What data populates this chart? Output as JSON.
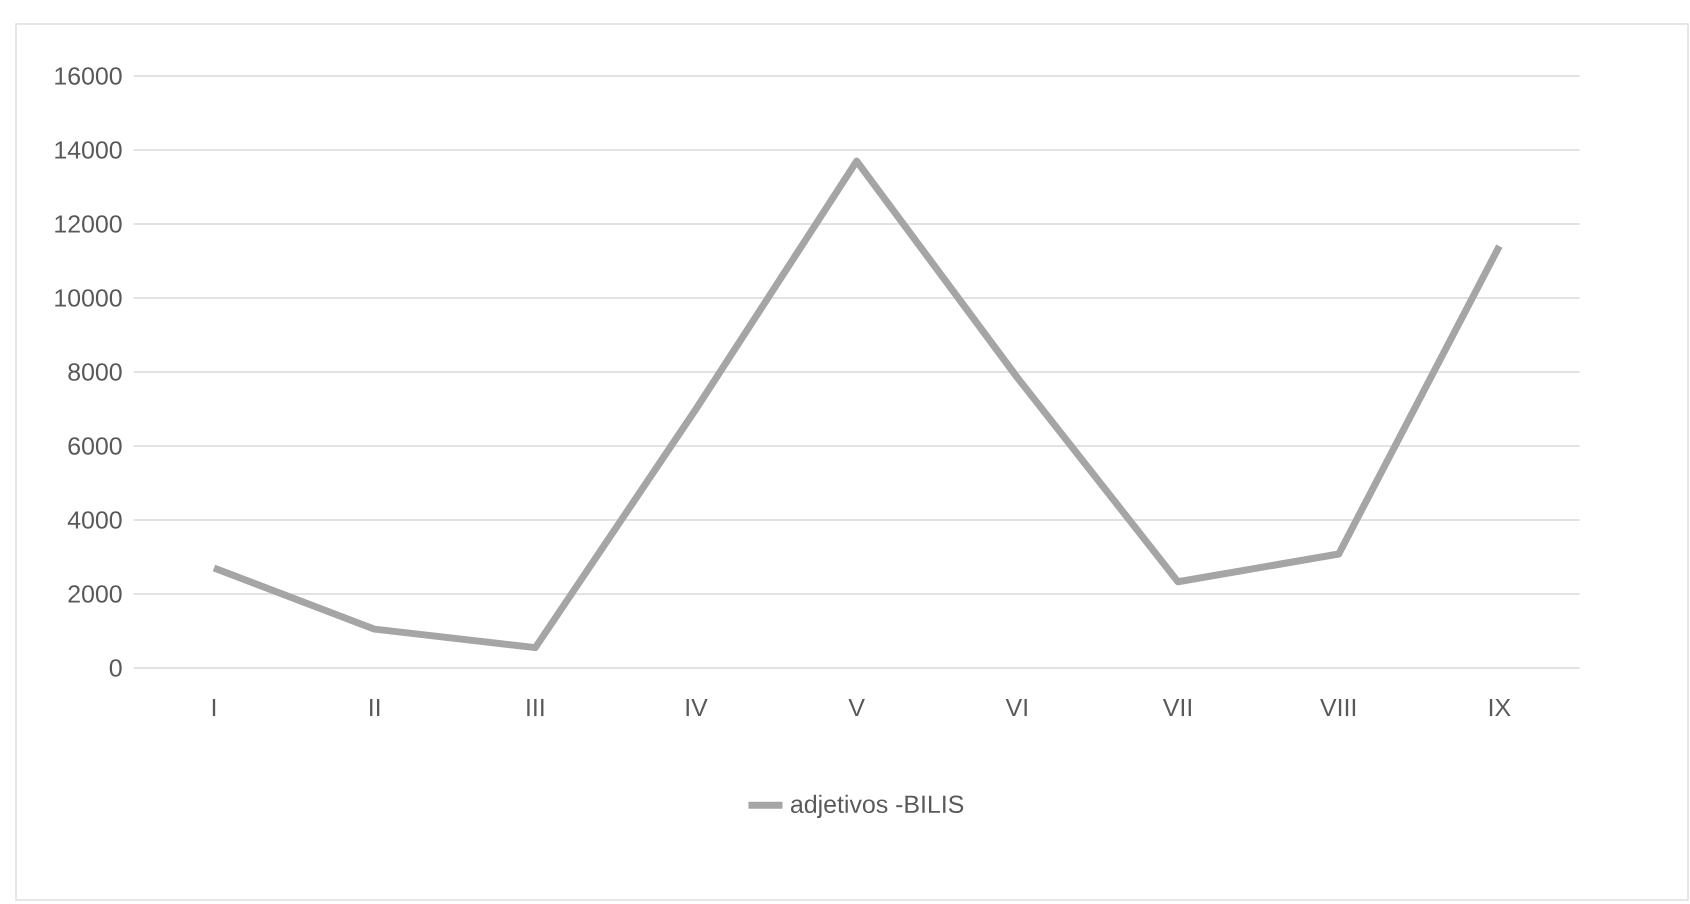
{
  "chart_data": {
    "type": "line",
    "categories": [
      "I",
      "II",
      "III",
      "IV",
      "V",
      "VI",
      "VII",
      "VIII",
      "IX"
    ],
    "series": [
      {
        "name": "adjetivos -BILIS",
        "color": "#a5a5a5",
        "values": [
          2700,
          1050,
          550,
          7000,
          13700,
          7850,
          2330,
          3080,
          11400
        ]
      }
    ],
    "ylim": [
      0,
      16000
    ],
    "yticks": [
      0,
      2000,
      4000,
      6000,
      8000,
      10000,
      12000,
      14000,
      16000
    ],
    "grid": "y",
    "legend": "bottom",
    "marker": "none",
    "line_style": "solid"
  }
}
